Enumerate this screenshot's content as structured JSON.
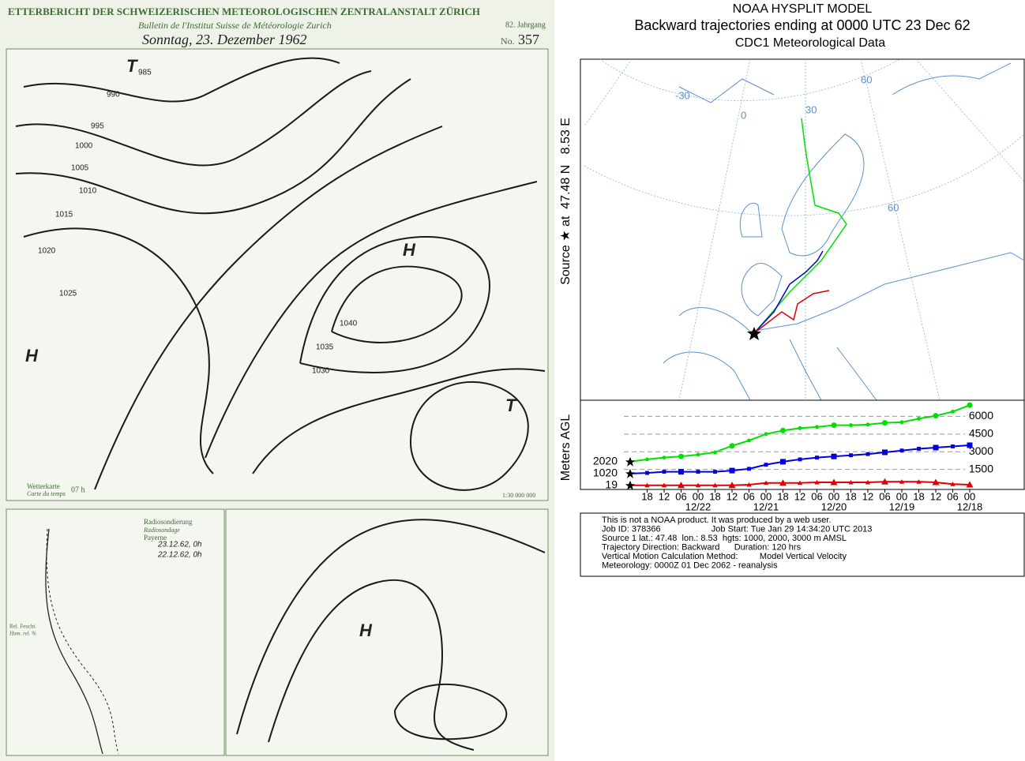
{
  "weather_map": {
    "header": "ETTERBERICHT DER SCHWEIZERISCHEN METEOROLOGISCHEN ZENTRALANSTALT ZÜRICH",
    "subheader": "Bulletin de l'Institut Suisse de Météorologie Zurich",
    "date": "Sonntag, 23. Dezember 1962",
    "volume": "82. Jahrgang",
    "number_label": "No.",
    "number": "357",
    "map_caption": "Wetterkarte",
    "map_caption_fr": "Carte du temps",
    "map_time": "07 h",
    "scale": "1:30 000 000",
    "sounding_title": "Radiosondierung",
    "sounding_title_fr": "Radiosondage",
    "sounding_station": "Payerne",
    "sounding_legend": [
      "23.12.62, 0h",
      "22.12.62, 0h"
    ],
    "humidity_label": "Rel. Feucht.",
    "humidity_label_fr": "Hum. rel. %",
    "pressure_labels": [
      "985",
      "990",
      "995",
      "1000",
      "1005",
      "1010",
      "1015",
      "1020",
      "1025",
      "1030",
      "1035",
      "1040"
    ],
    "centers": [
      "H",
      "H",
      "T",
      "T",
      "H"
    ]
  },
  "hysplit": {
    "title": "NOAA HYSPLIT MODEL",
    "subtitle": "Backward trajectories ending at 0000 UTC 23 Dec 62",
    "data_source": "CDC1 Meteorological Data",
    "source_label": "Source ★ at  47.48 N   8.53 E",
    "map_graticule_labels": [
      "-30",
      "0",
      "30",
      "60",
      "60"
    ],
    "footer": [
      "This is not a NOAA product. It was produced by a web user.",
      "Job ID: 378366                     Job Start: Tue Jan 29 14:34:20 UTC 2013",
      "Source 1 lat.: 47.48  lon.: 8.53  hgts: 1000, 2000, 3000 m AMSL",
      "Trajectory Direction: Backward      Duration: 120 hrs",
      "Vertical Motion Calculation Method:         Model Vertical Velocity",
      "Meteorology: 0000Z 01 Dec 2062 - reanalysis"
    ]
  },
  "chart_data": {
    "type": "line",
    "y_label": "Meters AGL",
    "categories": [
      null,
      "18",
      "12",
      "06",
      "00",
      "18",
      "12",
      "06",
      "00",
      "18",
      "12",
      "06",
      "00",
      "18",
      "12",
      "06",
      "00",
      "18",
      "12",
      "06",
      "00"
    ],
    "date_labels": [
      null,
      null,
      null,
      null,
      "12/22",
      null,
      null,
      null,
      "12/21",
      null,
      null,
      null,
      "12/20",
      null,
      null,
      null,
      "12/19",
      null,
      null,
      null,
      "12/18"
    ],
    "start_labels": [
      "19",
      "1020",
      "2020"
    ],
    "ylim": [
      -200,
      7300
    ],
    "yticks": [
      1500,
      3000,
      4500,
      6000
    ],
    "grid": true,
    "series": [
      {
        "color": "#e00000",
        "marker": "triangle",
        "values": [
          150,
          150,
          150,
          150,
          150,
          150,
          150,
          200,
          350,
          350,
          350,
          400,
          400,
          400,
          400,
          450,
          450,
          450,
          400,
          250,
          200
        ]
      },
      {
        "color": "#0000e0",
        "marker": "square",
        "values": [
          1150,
          1200,
          1300,
          1300,
          1300,
          1300,
          1400,
          1550,
          1900,
          2150,
          2350,
          2500,
          2600,
          2700,
          2800,
          2950,
          3100,
          3250,
          3350,
          3450,
          3550
        ]
      },
      {
        "color": "#00e000",
        "marker": "circle",
        "values": [
          2150,
          2350,
          2500,
          2600,
          2750,
          2950,
          3500,
          3950,
          4500,
          4800,
          5000,
          5100,
          5250,
          5250,
          5300,
          5450,
          5500,
          5800,
          6050,
          6400,
          6950
        ]
      }
    ]
  }
}
